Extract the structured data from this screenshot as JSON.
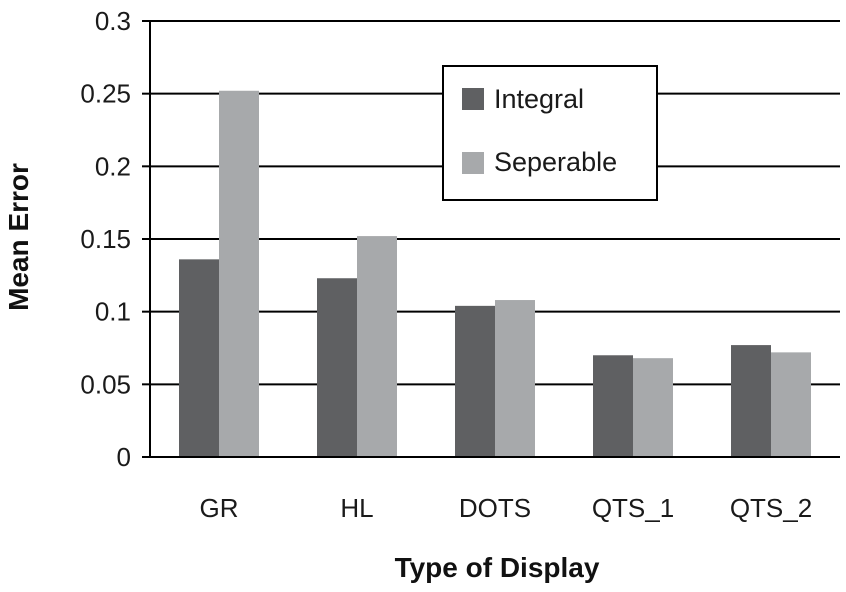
{
  "chart_data": {
    "type": "bar",
    "title": "",
    "xlabel": "Type of Display",
    "ylabel": "Mean Error",
    "ylim": [
      0,
      0.3
    ],
    "yticks": [
      "0",
      "0.05",
      "0.1",
      "0.15",
      "0.2",
      "0.25",
      "0.3"
    ],
    "categories": [
      "GR",
      "HL",
      "DOTS",
      "QTS_1",
      "QTS_2"
    ],
    "series": [
      {
        "name": "Integral",
        "color": "#5f6062",
        "values": [
          0.136,
          0.123,
          0.104,
          0.07,
          0.077
        ]
      },
      {
        "name": "Seperable",
        "color": "#a7a9ab",
        "values": [
          0.252,
          0.152,
          0.108,
          0.068,
          0.072
        ]
      }
    ],
    "grid": true,
    "legend_position": "top-right"
  }
}
